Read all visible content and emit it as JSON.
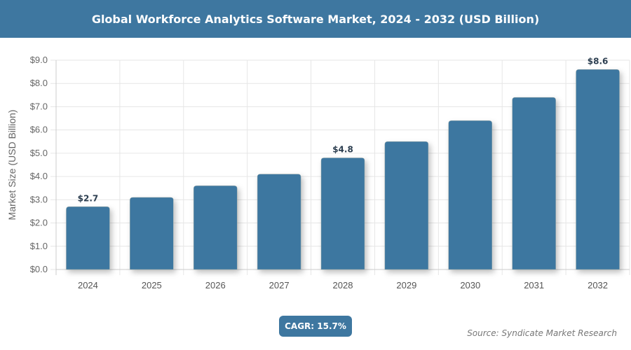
{
  "chart_data": {
    "type": "bar",
    "title": "Global Workforce Analytics Software Market, 2024 - 2032 (USD Billion)",
    "xlabel": "",
    "ylabel": "Market Size (USD Billion)",
    "categories": [
      "2024",
      "2025",
      "2026",
      "2027",
      "2028",
      "2029",
      "2030",
      "2031",
      "2032"
    ],
    "values": [
      2.7,
      3.1,
      3.6,
      4.1,
      4.8,
      5.5,
      6.4,
      7.4,
      8.6
    ],
    "data_labels": {
      "2024": "$2.7",
      "2028": "$4.8",
      "2032": "$8.6"
    },
    "ylim": [
      0,
      9
    ],
    "yticks": [
      "$0.0",
      "$1.0",
      "$2.0",
      "$3.0",
      "$4.0",
      "$5.0",
      "$6.0",
      "$7.0",
      "$8.0",
      "$9.0"
    ],
    "grid": true,
    "bar_color": "#3e77a0"
  },
  "footer": {
    "cagr": "CAGR: 15.7%",
    "source": "Source: Syndicate Market Research"
  }
}
